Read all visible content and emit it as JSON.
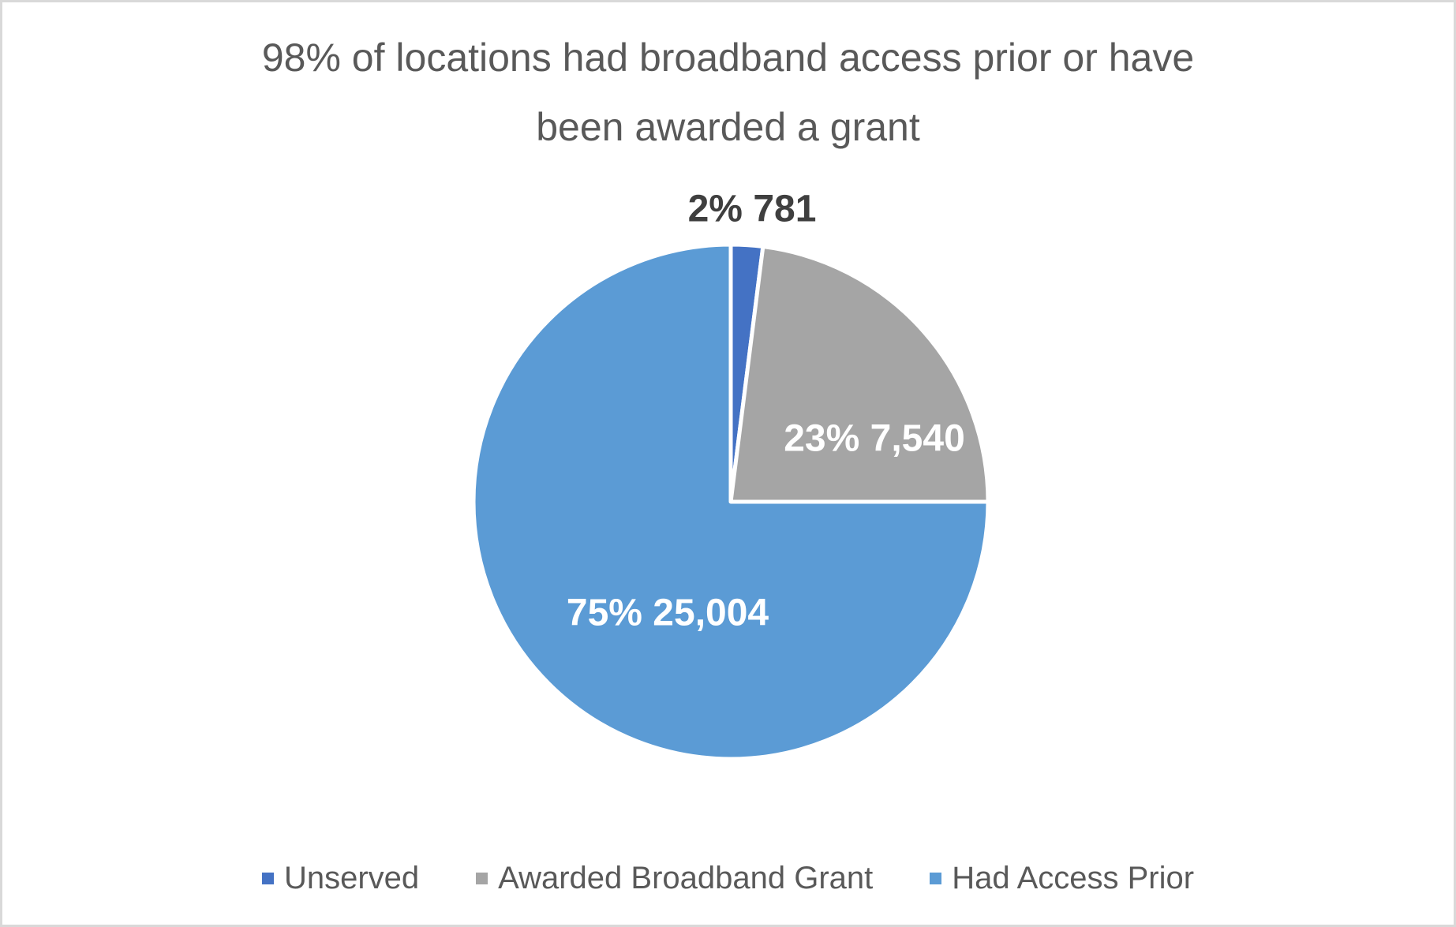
{
  "window": {
    "background": "#FFFFFF",
    "border_color": "#D9D9D9"
  },
  "chart_data": {
    "type": "pie",
    "title": "98% of locations had broadband access prior or have been awarded a grant",
    "title_lines": [
      "98% of locations had broadband access prior or have",
      "been awarded a grant"
    ],
    "legend_position": "bottom",
    "grid": false,
    "slices": [
      {
        "label": "Unserved",
        "percent": 2,
        "value": 781,
        "data_label": "2% 781",
        "color": "#4472C4",
        "label_position": "outside-top",
        "label_text_color": "#3F3F3F"
      },
      {
        "label": "Awarded Broadband Grant",
        "percent": 23,
        "value": 7540,
        "data_label": "23% 7,540",
        "color": "#A5A5A5",
        "label_position": "inside",
        "label_text_color": "#FFFFFF"
      },
      {
        "label": "Had Access Prior",
        "percent": 75,
        "value": 25004,
        "data_label": "75% 25,004",
        "color": "#5B9BD5",
        "label_position": "inside",
        "label_text_color": "#FFFFFF"
      }
    ],
    "colors": {
      "title_text": "#595959",
      "legend_text": "#595959",
      "slice_border": "#FFFFFF"
    }
  }
}
